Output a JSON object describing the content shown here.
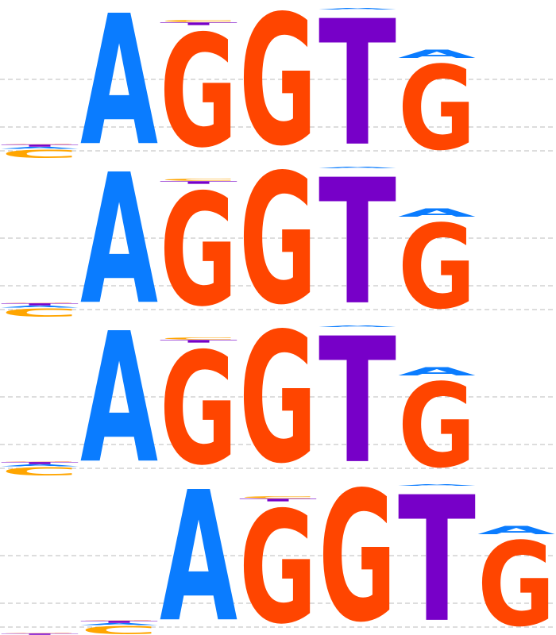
{
  "chart_data": {
    "type": "sequence-logo",
    "title": "",
    "xlabel": "",
    "ylabel": "",
    "ylim": [
      0,
      2
    ],
    "grid": "dashed horizontal",
    "colors": {
      "A": "#0a7cff",
      "C": "#ffa500",
      "G": "#ff4500",
      "T": "#7700c8"
    },
    "rows": [
      {
        "name": "row-1",
        "offset": 0,
        "positions": [
          [
            [
              "C",
              0.12
            ],
            [
              "A",
              0.03
            ],
            [
              "T",
              0.03
            ],
            [
              "G",
              0.01
            ]
          ],
          [
            [
              "A",
              1.95
            ]
          ],
          [
            [
              "G",
              1.68
            ],
            [
              "T",
              0.04
            ],
            [
              "C",
              0.03
            ]
          ],
          [
            [
              "G",
              1.95
            ]
          ],
          [
            [
              "T",
              1.88
            ],
            [
              "A",
              0.02
            ]
          ],
          [
            [
              "G",
              1.26
            ],
            [
              "A",
              0.12
            ]
          ]
        ]
      },
      {
        "name": "row-2",
        "offset": 0,
        "positions": [
          [
            [
              "C",
              0.12
            ],
            [
              "A",
              0.03
            ],
            [
              "T",
              0.03
            ],
            [
              "G",
              0.01
            ]
          ],
          [
            [
              "A",
              1.95
            ]
          ],
          [
            [
              "G",
              1.68
            ],
            [
              "T",
              0.04
            ],
            [
              "C",
              0.03
            ]
          ],
          [
            [
              "G",
              1.95
            ]
          ],
          [
            [
              "T",
              1.88
            ],
            [
              "A",
              0.02
            ]
          ],
          [
            [
              "G",
              1.26
            ],
            [
              "A",
              0.12
            ]
          ]
        ]
      },
      {
        "name": "row-3",
        "offset": 0,
        "positions": [
          [
            [
              "C",
              0.12
            ],
            [
              "A",
              0.03
            ],
            [
              "T",
              0.03
            ],
            [
              "G",
              0.01
            ]
          ],
          [
            [
              "A",
              1.95
            ]
          ],
          [
            [
              "G",
              1.68
            ],
            [
              "T",
              0.04
            ],
            [
              "C",
              0.03
            ]
          ],
          [
            [
              "G",
              1.95
            ]
          ],
          [
            [
              "T",
              1.88
            ],
            [
              "A",
              0.02
            ]
          ],
          [
            [
              "G",
              1.26
            ],
            [
              "A",
              0.12
            ]
          ]
        ]
      },
      {
        "name": "row-4",
        "offset": 1,
        "positions": [
          [
            [
              "T",
              0.02
            ],
            [
              "G",
              0.01
            ]
          ],
          [
            [
              "C",
              0.12
            ],
            [
              "A",
              0.03
            ],
            [
              "T",
              0.03
            ],
            [
              "G",
              0.01
            ]
          ],
          [
            [
              "A",
              1.95
            ]
          ],
          [
            [
              "G",
              1.68
            ],
            [
              "T",
              0.04
            ],
            [
              "C",
              0.03
            ]
          ],
          [
            [
              "G",
              1.95
            ]
          ],
          [
            [
              "T",
              1.88
            ],
            [
              "A",
              0.02
            ]
          ],
          [
            [
              "G",
              1.26
            ],
            [
              "A",
              0.12
            ]
          ]
        ]
      }
    ]
  }
}
